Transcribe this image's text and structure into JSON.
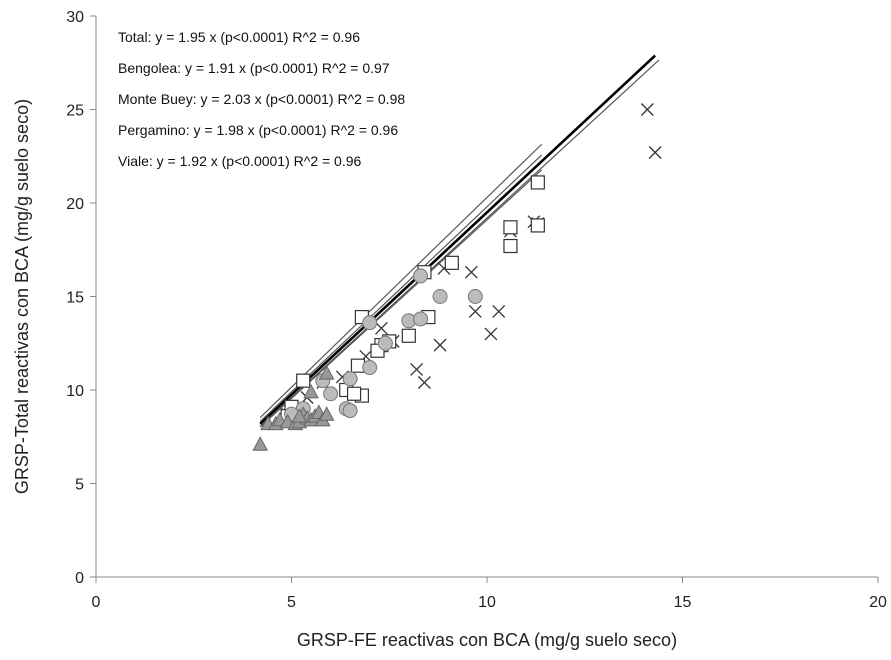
{
  "chart_data": {
    "type": "scatter",
    "title": "",
    "xlabel": "GRSP-FE reactivas con BCA (mg/g suelo seco)",
    "ylabel": "GRSP-Total  reactivas con BCA (mg/g suelo seco)",
    "xlim": [
      0,
      20
    ],
    "ylim": [
      0,
      30
    ],
    "x_ticks": [
      "0",
      "5",
      "10",
      "15",
      "20"
    ],
    "y_ticks": [
      "0",
      "5",
      "10",
      "15",
      "20",
      "25",
      "30"
    ],
    "grid": false,
    "legend": "none",
    "annotations": [
      "Total: y = 1.95 x (p<0.0001)  R^2 = 0.96",
      "Bengolea: y = 1.91 x (p<0.0001)  R^2 = 0.97",
      "Monte Buey: y = 2.03 x (p<0.0001)  R^2 = 0.98",
      "Pergamino: y = 1.98 x (p<0.0001)  R^2 = 0.96",
      "Viale: y = 1.92 x (p<0.0001)  R^2 = 0.96"
    ],
    "series": [
      {
        "marker": "x",
        "color": "#333333",
        "points": [
          [
            14.1,
            25.0
          ],
          [
            14.3,
            22.7
          ],
          [
            11.2,
            19.0
          ],
          [
            11.3,
            18.9
          ],
          [
            10.6,
            18.5
          ],
          [
            9.6,
            16.3
          ],
          [
            8.9,
            16.5
          ],
          [
            9.7,
            14.2
          ],
          [
            10.3,
            14.2
          ],
          [
            10.1,
            13.0
          ],
          [
            8.8,
            12.4
          ],
          [
            8.2,
            11.1
          ],
          [
            8.4,
            10.4
          ],
          [
            7.3,
            13.3
          ],
          [
            7.6,
            12.6
          ],
          [
            7.2,
            12.1
          ],
          [
            6.9,
            11.8
          ],
          [
            6.3,
            10.7
          ],
          [
            5.8,
            10.4
          ],
          [
            5.4,
            9.6
          ],
          [
            5.1,
            9.0
          ],
          [
            4.9,
            8.7
          ]
        ]
      },
      {
        "marker": "square",
        "color": "#333333",
        "points": [
          [
            11.3,
            21.1
          ],
          [
            10.6,
            18.7
          ],
          [
            11.3,
            18.8
          ],
          [
            10.6,
            17.7
          ],
          [
            9.1,
            16.8
          ],
          [
            8.4,
            16.3
          ],
          [
            8.5,
            13.9
          ],
          [
            8.0,
            12.9
          ],
          [
            7.5,
            12.6
          ],
          [
            7.3,
            12.4
          ],
          [
            7.2,
            12.1
          ],
          [
            6.8,
            13.9
          ],
          [
            6.7,
            11.3
          ],
          [
            5.3,
            10.5
          ],
          [
            6.4,
            10.0
          ],
          [
            6.8,
            9.7
          ],
          [
            6.6,
            9.8
          ],
          [
            5.0,
            9.1
          ],
          [
            4.9,
            8.6
          ]
        ]
      },
      {
        "marker": "circle",
        "color": "#bbbbbb",
        "points": [
          [
            8.3,
            16.1
          ],
          [
            8.8,
            15.0
          ],
          [
            9.7,
            15.0
          ],
          [
            7.0,
            13.6
          ],
          [
            8.0,
            13.7
          ],
          [
            8.3,
            13.8
          ],
          [
            7.4,
            12.5
          ],
          [
            7.0,
            11.2
          ],
          [
            6.5,
            10.6
          ],
          [
            5.8,
            10.5
          ],
          [
            6.0,
            9.8
          ],
          [
            6.4,
            9.0
          ],
          [
            6.5,
            8.9
          ],
          [
            5.3,
            9.0
          ],
          [
            5.0,
            8.7
          ]
        ]
      },
      {
        "marker": "triangle",
        "color": "#999999",
        "points": [
          [
            4.2,
            7.1
          ],
          [
            4.4,
            8.2
          ],
          [
            4.6,
            8.2
          ],
          [
            4.7,
            8.4
          ],
          [
            4.9,
            8.3
          ],
          [
            5.1,
            8.2
          ],
          [
            5.2,
            8.3
          ],
          [
            5.3,
            8.7
          ],
          [
            5.4,
            8.5
          ],
          [
            5.5,
            8.4
          ],
          [
            5.6,
            8.6
          ],
          [
            5.7,
            8.8
          ],
          [
            5.8,
            8.4
          ],
          [
            5.9,
            8.7
          ],
          [
            5.5,
            9.9
          ],
          [
            5.9,
            10.9
          ],
          [
            5.2,
            8.6
          ]
        ]
      }
    ],
    "trend_lines": [
      {
        "slope": 1.95,
        "x": [
          4.2,
          14.3
        ],
        "color": "#000000"
      },
      {
        "slope": 1.91,
        "x": [
          4.2,
          11.4
        ],
        "color": "#555555"
      },
      {
        "slope": 2.03,
        "x": [
          4.2,
          11.4
        ],
        "color": "#555555"
      },
      {
        "slope": 1.98,
        "x": [
          4.2,
          11.4
        ],
        "color": "#555555"
      },
      {
        "slope": 1.92,
        "x": [
          4.2,
          14.4
        ],
        "color": "#555555"
      }
    ]
  }
}
